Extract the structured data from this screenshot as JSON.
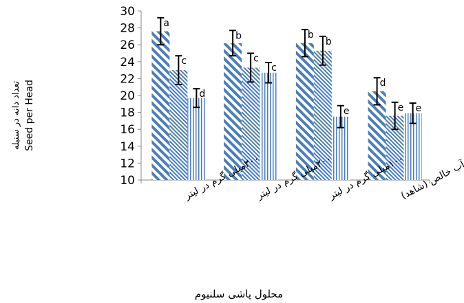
{
  "chart_data": {
    "type": "bar",
    "categories": [
      "۳۰۰میلی گرم در لیتر",
      "۲۰۰میلی گرم در لیتر",
      "۱۰۰میلی گرم در لیتر",
      "آب خالص (شاهد)"
    ],
    "series": [
      {
        "values": [
          27.6,
          26.2,
          26.2,
          20.5
        ],
        "errors": [
          1.6,
          1.5,
          1.6,
          1.6
        ],
        "letters": [
          "a",
          "b",
          "b",
          "d"
        ],
        "pattern": "wide-diagonal",
        "color": "#4a7ebb"
      },
      {
        "values": [
          23.0,
          23.3,
          25.3,
          17.6
        ],
        "errors": [
          1.7,
          1.7,
          1.7,
          1.6
        ],
        "letters": [
          "c",
          "c",
          "b",
          "e"
        ],
        "pattern": "fine-diagonal",
        "color": "#4a7ebb"
      },
      {
        "values": [
          19.7,
          22.7,
          17.5,
          17.9
        ],
        "errors": [
          1.1,
          1.2,
          1.3,
          1.2
        ],
        "letters": [
          "d",
          "c",
          "e",
          "e"
        ],
        "pattern": "vertical",
        "color": "#4a7ebb"
      }
    ],
    "ylabel_fa": "تعداد دانه در سنبله",
    "ylabel_en": "Seed per Head",
    "xlabel": "محلول پاشی سلنیوم",
    "ylim": [
      10,
      30
    ],
    "yticks": [
      10,
      12,
      14,
      16,
      18,
      20,
      22,
      24,
      26,
      28,
      30
    ],
    "grid": false,
    "legend": "none"
  }
}
